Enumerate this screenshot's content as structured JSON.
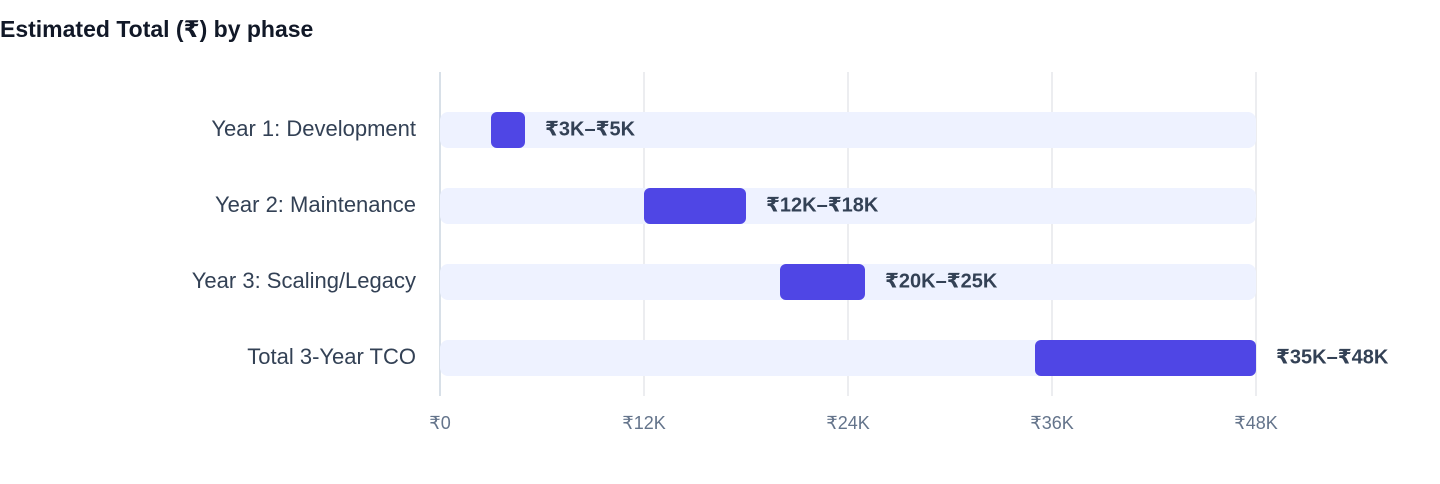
{
  "chart_data": {
    "type": "range_bar",
    "title": "Estimated Total (₹) by phase",
    "categories": [
      "Year 1: Development",
      "Year 2: Maintenance",
      "Year 3: Scaling/Legacy",
      "Total 3-Year TCO"
    ],
    "low": [
      3000,
      12000,
      20000,
      35000
    ],
    "high": [
      5000,
      18000,
      25000,
      48000
    ],
    "value_labels": [
      "₹3K–₹5K",
      "₹12K–₹18K",
      "₹20K–₹25K",
      "₹35K–₹48K"
    ],
    "color": "#4f46e5",
    "xlim": [
      0,
      48000
    ],
    "xticks": [
      {
        "value": 0,
        "label": "₹0"
      },
      {
        "value": 12000,
        "label": "₹12K"
      },
      {
        "value": 24000,
        "label": "₹24K"
      },
      {
        "value": 36000,
        "label": "₹36K"
      },
      {
        "value": 48000,
        "label": "₹48K"
      }
    ],
    "grid": true
  }
}
